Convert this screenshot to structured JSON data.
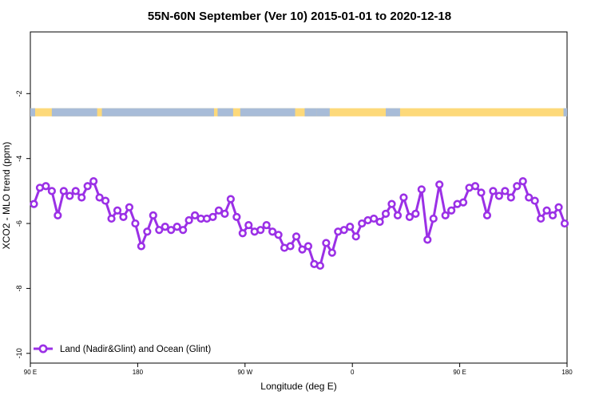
{
  "chart_data": {
    "type": "line",
    "title": "55N-60N September (Ver 10)   2015-01-01 to 2020-12-18",
    "xlabel": "Longitude (deg E)",
    "ylabel": "XCO2 - MLO trend (ppm)",
    "x_ticks": [
      {
        "value": 90,
        "label": "90 E"
      },
      {
        "value": 180,
        "label": "180"
      },
      {
        "value": 270,
        "label": "90 W"
      },
      {
        "value": 360,
        "label": "0"
      },
      {
        "value": 450,
        "label": "90 E"
      },
      {
        "value": 540,
        "label": "180"
      }
    ],
    "y_ticks": [
      -2,
      -4,
      -6,
      -8,
      -10
    ],
    "xlim": [
      90,
      540
    ],
    "ylim": [
      -10.3,
      -0.1
    ],
    "legend_position": "bottom-left",
    "series": [
      {
        "name": "Land (Nadir&Glint) and Ocean (Glint)",
        "color": "#9b30e6",
        "x": [
          93,
          98,
          103,
          108,
          113,
          118,
          123,
          128,
          133,
          138,
          143,
          148,
          153,
          158,
          163,
          168,
          173,
          178,
          183,
          188,
          193,
          198,
          203,
          208,
          213,
          218,
          223,
          228,
          233,
          238,
          243,
          248,
          253,
          258,
          263,
          268,
          273,
          278,
          283,
          288,
          293,
          298,
          303,
          308,
          313,
          318,
          323,
          328,
          333,
          338,
          343,
          348,
          353,
          358,
          363,
          368,
          373,
          378,
          383,
          388,
          393,
          398,
          403,
          408,
          413,
          418,
          423,
          428,
          433,
          438,
          443,
          448,
          453,
          458,
          463,
          468,
          473,
          478,
          483,
          488,
          493,
          498,
          503,
          508,
          513,
          518,
          523,
          528,
          533,
          538
        ],
        "y": [
          -5.4,
          -4.9,
          -4.85,
          -5.0,
          -5.75,
          -5.0,
          -5.15,
          -5.0,
          -5.2,
          -4.85,
          -4.7,
          -5.2,
          -5.3,
          -5.85,
          -5.6,
          -5.8,
          -5.5,
          -6.0,
          -6.7,
          -6.25,
          -5.75,
          -6.2,
          -6.1,
          -6.2,
          -6.1,
          -6.2,
          -5.9,
          -5.75,
          -5.85,
          -5.85,
          -5.8,
          -5.6,
          -5.7,
          -5.25,
          -5.8,
          -6.3,
          -6.05,
          -6.25,
          -6.2,
          -6.05,
          -6.25,
          -6.35,
          -6.75,
          -6.7,
          -6.4,
          -6.8,
          -6.7,
          -7.25,
          -7.3,
          -6.6,
          -6.9,
          -6.25,
          -6.2,
          -6.1,
          -6.4,
          -6.0,
          -5.9,
          -5.85,
          -5.95,
          -5.7,
          -5.4,
          -5.75,
          -5.2,
          -5.8,
          -5.7,
          -4.95,
          -6.5,
          -5.85,
          -4.8,
          -5.75,
          -5.6,
          -5.4,
          -5.35,
          -4.9,
          -4.85,
          -5.05,
          -5.75,
          -5.0,
          -5.15,
          -5.0,
          -5.2,
          -4.85,
          -4.7,
          -5.2,
          -5.3,
          -5.85,
          -5.6,
          -5.75,
          -5.5,
          -6.0
        ]
      }
    ],
    "surface_strip": {
      "y_range": [
        -2.45,
        -2.7
      ],
      "land_color": "#fdd97a",
      "ocean_color": "#a8bcd8"
    }
  }
}
